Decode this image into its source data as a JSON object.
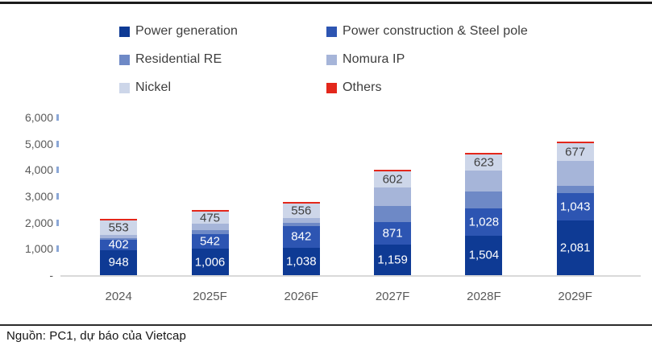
{
  "footer": {
    "source": "Nguồn: PC1, dự báo của Vietcap"
  },
  "chart_data": {
    "type": "bar",
    "stacked": true,
    "title": "",
    "xlabel": "",
    "ylabel": "",
    "legend_position": "top",
    "gridlines": false,
    "categories": [
      "2024",
      "2025F",
      "2026F",
      "2027F",
      "2028F",
      "2029F"
    ],
    "series": [
      {
        "name": "Power generation",
        "color": "#0e3a94",
        "values": [
          948,
          1006,
          1038,
          1159,
          1504,
          2081
        ],
        "labels": [
          "948",
          "1,006",
          "1,038",
          "1,159",
          "1,504",
          "2,081"
        ],
        "labels_shown": true,
        "label_color": "#ffffff"
      },
      {
        "name": "Power construction & Steel pole",
        "color": "#2d55b2",
        "values": [
          402,
          542,
          842,
          871,
          1028,
          1043
        ],
        "labels": [
          "402",
          "542",
          "842",
          "871",
          "1,028",
          "1,043"
        ],
        "labels_shown": true,
        "label_color": "#ffffff"
      },
      {
        "name": "Residential RE",
        "color": "#6e89c6",
        "values": [
          60,
          170,
          100,
          600,
          650,
          280
        ],
        "labels": null,
        "labels_shown": false,
        "label_color": null
      },
      {
        "name": "Nomura IP",
        "color": "#a6b5d9",
        "values": [
          130,
          230,
          180,
          700,
          780,
          930
        ],
        "labels": null,
        "labels_shown": false,
        "label_color": null
      },
      {
        "name": "Nickel",
        "color": "#cdd6e9",
        "values": [
          553,
          475,
          556,
          602,
          623,
          677
        ],
        "labels": [
          "553",
          "475",
          "556",
          "602",
          "623",
          "677"
        ],
        "labels_shown": true,
        "label_color": "#3f3f3f"
      },
      {
        "name": "Others",
        "color": "#e3271b",
        "values": [
          20,
          25,
          25,
          25,
          30,
          35
        ],
        "labels": null,
        "labels_shown": false,
        "label_color": null
      }
    ],
    "y_axis": {
      "min": 0,
      "max": 6000,
      "tick_step": 1000,
      "tick_labels": [
        "6,000",
        "5,000",
        "4,000",
        "3,000",
        "2,000",
        "1,000",
        "-"
      ]
    }
  }
}
